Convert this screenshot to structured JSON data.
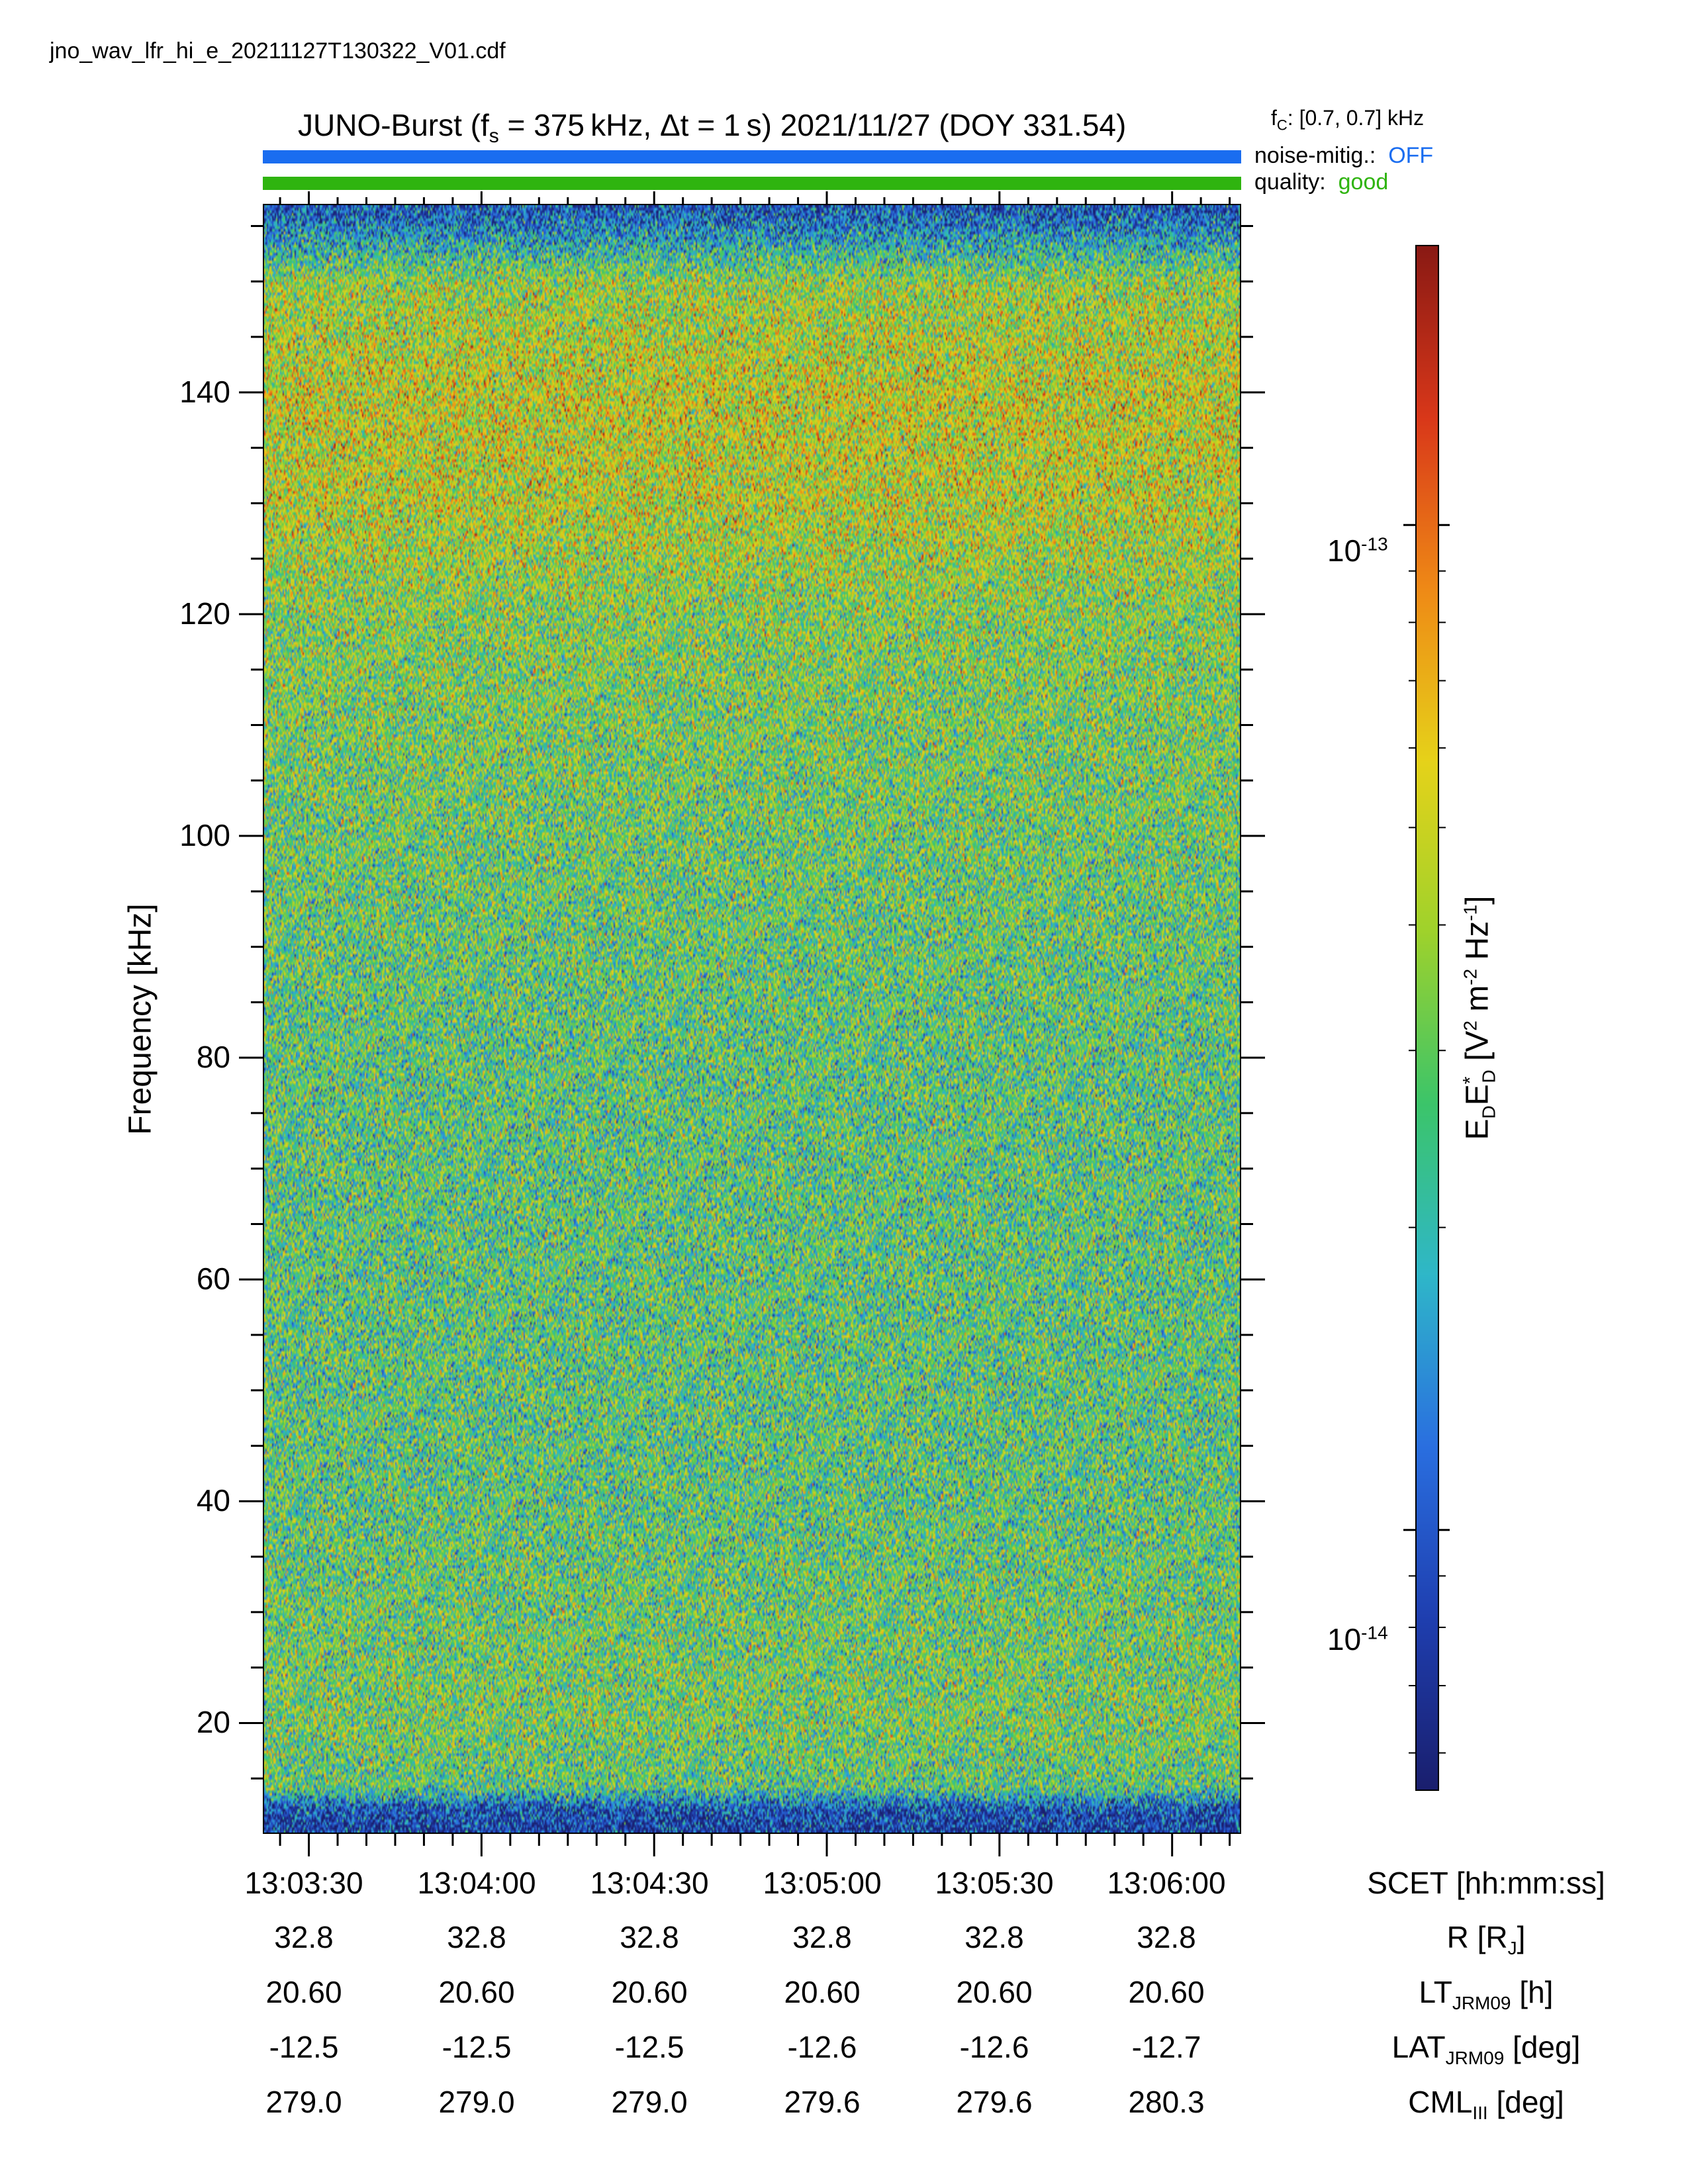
{
  "filename": "jno_wav_lfr_hi_e_20211127T130322_V01.cdf",
  "header": {
    "title": "JUNO-Burst (f",
    "title_sub": "s",
    "title_rest": " = 375 kHz, Δt = 1 s)  2021/11/27 (DOY 331.54)",
    "fc_prefix": "f",
    "fc_sub": "C",
    "fc_value": ": [0.7, 0.7] kHz",
    "noise_label": "noise-mitig.:",
    "noise_value": "OFF",
    "quality_label": "quality:",
    "quality_value": "good",
    "colors": {
      "noise": "#1a6df0",
      "quality": "#2fb40f"
    }
  },
  "chart_data": {
    "type": "heatmap",
    "xlabel": "SCET [hh:mm:ss]",
    "ylabel": "Frequency [kHz]",
    "ylim": [
      10,
      157
    ],
    "y_ticks": [
      20,
      40,
      60,
      80,
      100,
      120,
      140
    ],
    "y_tick_labels": [
      "20",
      "40",
      "60",
      "80",
      "100",
      "120",
      "140"
    ],
    "x_time_range": [
      "13:03:22",
      "13:06:12"
    ],
    "x_ticks": [
      "13:03:30",
      "13:04:00",
      "13:04:30",
      "13:05:00",
      "13:05:30",
      "13:06:00"
    ],
    "colorbar": {
      "label_main": "E",
      "label_text": "E*D [V² m⁻² Hz⁻¹]",
      "scale": "log",
      "range": [
        5.5e-15,
        1.9e-13
      ],
      "ticks": [
        "10^-13",
        "10^-14"
      ],
      "colormap": [
        "#1a1f6e",
        "#1f3fb0",
        "#2a6fe0",
        "#2fb7c9",
        "#3cc56a",
        "#9fd22c",
        "#e6d21a",
        "#ef8a16",
        "#d9381a",
        "#8a1a14"
      ]
    },
    "intensity_profile": {
      "frequency_kHz": [
        10,
        12,
        14,
        20,
        40,
        60,
        80,
        100,
        120,
        130,
        140,
        150,
        155,
        157
      ],
      "relative_level": [
        0.1,
        0.15,
        0.45,
        0.5,
        0.45,
        0.45,
        0.45,
        0.48,
        0.52,
        0.6,
        0.62,
        0.55,
        0.25,
        0.15
      ]
    }
  },
  "ephemeris": {
    "columns": [
      "13:03:30",
      "13:04:00",
      "13:04:30",
      "13:05:00",
      "13:05:30",
      "13:06:00"
    ],
    "rows": [
      {
        "label": "SCET [hh:mm:ss]",
        "values": [
          "13:03:30",
          "13:04:00",
          "13:04:30",
          "13:05:00",
          "13:05:30",
          "13:06:00"
        ]
      },
      {
        "label": "R [R",
        "label_sub": "J",
        "label_end": "]",
        "values": [
          "32.8",
          "32.8",
          "32.8",
          "32.8",
          "32.8",
          "32.8"
        ]
      },
      {
        "label": "LT",
        "label_sub": "JRM09",
        "label_end": " [h]",
        "values": [
          "20.60",
          "20.60",
          "20.60",
          "20.60",
          "20.60",
          "20.60"
        ]
      },
      {
        "label": "LAT",
        "label_sub": "JRM09",
        "label_end": " [deg]",
        "values": [
          "-12.5",
          "-12.5",
          "-12.5",
          "-12.6",
          "-12.6",
          "-12.7"
        ]
      },
      {
        "label": "CML",
        "label_sub": "III",
        "label_end": " [deg]",
        "values": [
          "279.0",
          "279.0",
          "279.0",
          "279.6",
          "279.6",
          "280.3"
        ]
      }
    ]
  },
  "colorbar_ticks": {
    "upper_base": "10",
    "upper_exp": "-13",
    "lower_base": "10",
    "lower_exp": "-14"
  },
  "colorbar_label": {
    "E": "E",
    "Dsub": "D",
    "E2": "E",
    "star": "*",
    "D2sub": "D",
    "units": " [V",
    "sup2": "2",
    "m": " m",
    "supm2": "-2",
    "hz": " Hz",
    "supm1": "-1",
    "close": "]"
  }
}
